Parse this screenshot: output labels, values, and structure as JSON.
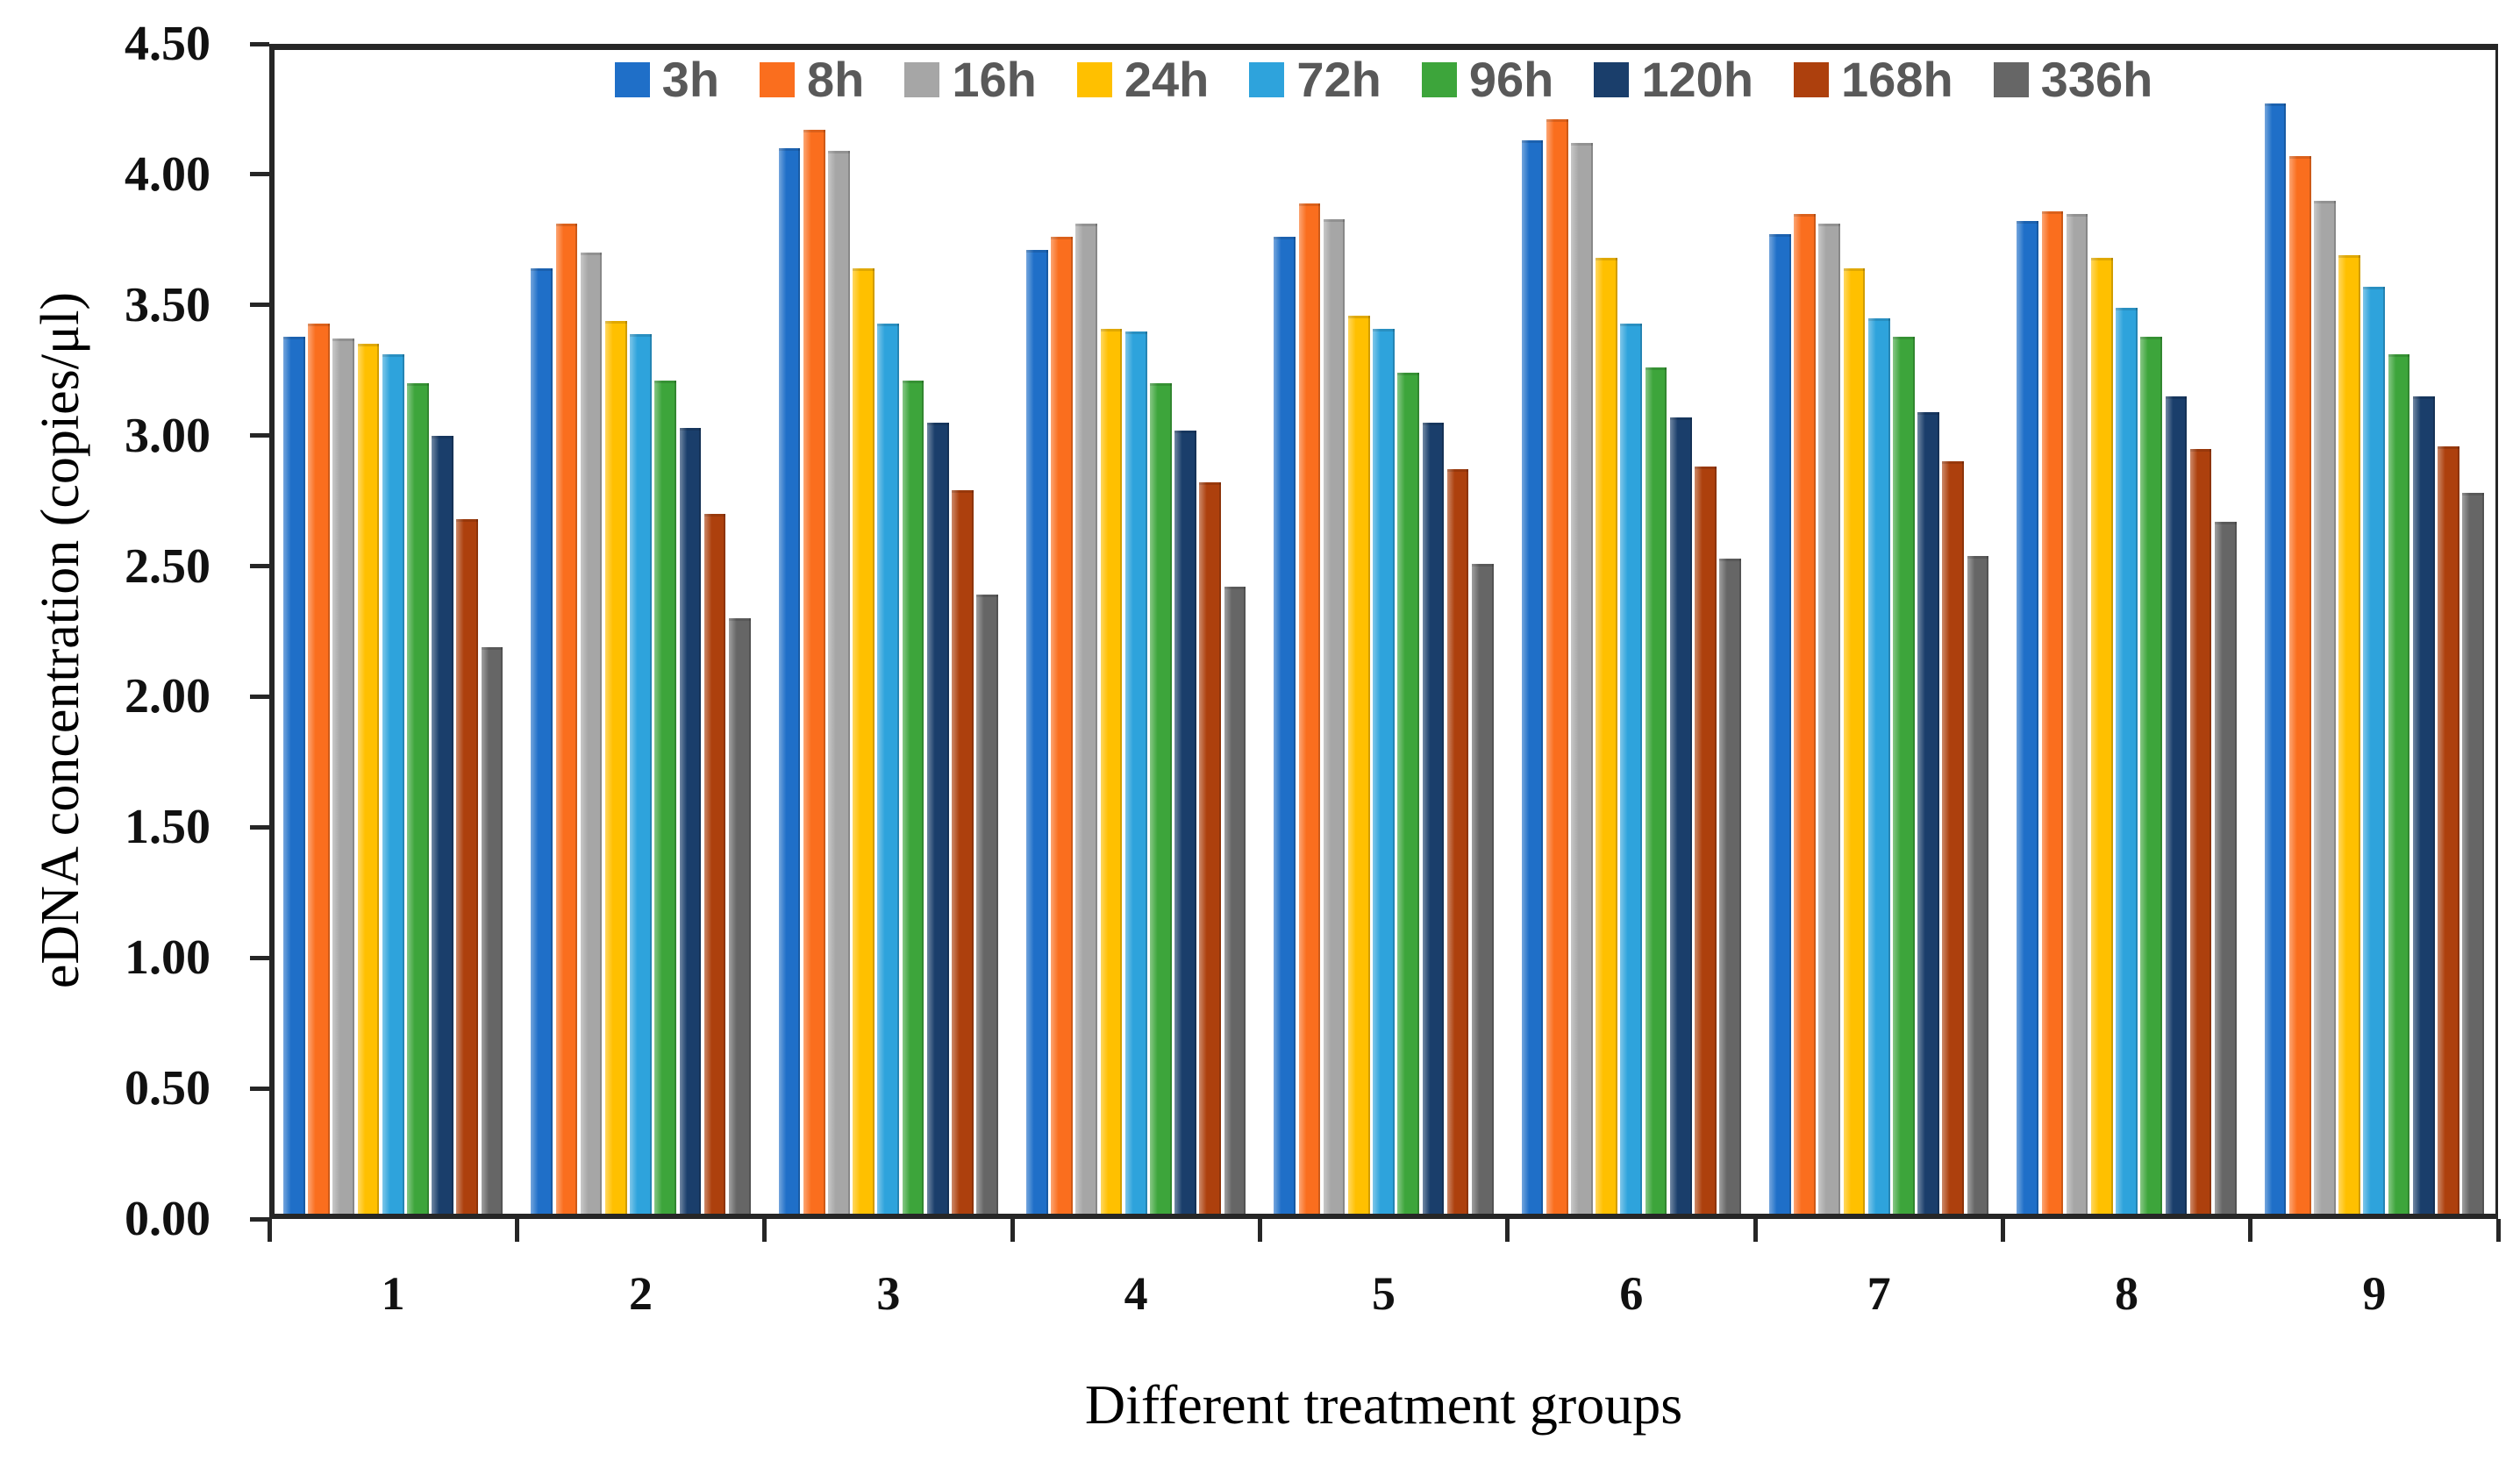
{
  "chart_data": {
    "type": "bar",
    "title": "",
    "xlabel": "Different treatment groups",
    "ylabel": "eDNA concentration (copies/μl)",
    "categories": [
      "1",
      "2",
      "3",
      "4",
      "5",
      "6",
      "7",
      "8",
      "9"
    ],
    "series": [
      {
        "name": "3h",
        "color": "#1F6FC8",
        "values": [
          3.38,
          3.64,
          4.1,
          3.71,
          3.76,
          4.13,
          3.77,
          3.82,
          4.27
        ]
      },
      {
        "name": "8h",
        "color": "#FA6E1E",
        "values": [
          3.43,
          3.81,
          4.17,
          3.76,
          3.89,
          4.21,
          3.85,
          3.86,
          4.07
        ]
      },
      {
        "name": "16h",
        "color": "#A6A6A6",
        "values": [
          3.37,
          3.7,
          4.09,
          3.81,
          3.83,
          4.12,
          3.81,
          3.85,
          3.9
        ]
      },
      {
        "name": "24h",
        "color": "#FFC000",
        "values": [
          3.35,
          3.44,
          3.64,
          3.41,
          3.46,
          3.68,
          3.64,
          3.68,
          3.69
        ]
      },
      {
        "name": "72h",
        "color": "#2EA3DC",
        "values": [
          3.31,
          3.39,
          3.43,
          3.4,
          3.41,
          3.43,
          3.45,
          3.49,
          3.57
        ]
      },
      {
        "name": "96h",
        "color": "#3DA53B",
        "values": [
          3.2,
          3.21,
          3.21,
          3.2,
          3.24,
          3.26,
          3.38,
          3.38,
          3.31
        ]
      },
      {
        "name": "120h",
        "color": "#1A3E6B",
        "values": [
          3.0,
          3.03,
          3.05,
          3.02,
          3.05,
          3.07,
          3.09,
          3.15,
          3.15
        ]
      },
      {
        "name": "168h",
        "color": "#AD400D",
        "values": [
          2.68,
          2.7,
          2.79,
          2.82,
          2.87,
          2.88,
          2.9,
          2.95,
          2.96
        ]
      },
      {
        "name": "336h",
        "color": "#666666",
        "values": [
          2.19,
          2.3,
          2.39,
          2.42,
          2.51,
          2.53,
          2.54,
          2.67,
          2.78
        ]
      }
    ],
    "y_axis": {
      "min": 0.0,
      "max": 4.5,
      "step": 0.5,
      "tick_labels": [
        "0.00",
        "0.50",
        "1.00",
        "1.50",
        "2.00",
        "2.50",
        "3.00",
        "3.50",
        "4.00",
        "4.50"
      ]
    },
    "legend_position": "top-center",
    "grid": false
  }
}
